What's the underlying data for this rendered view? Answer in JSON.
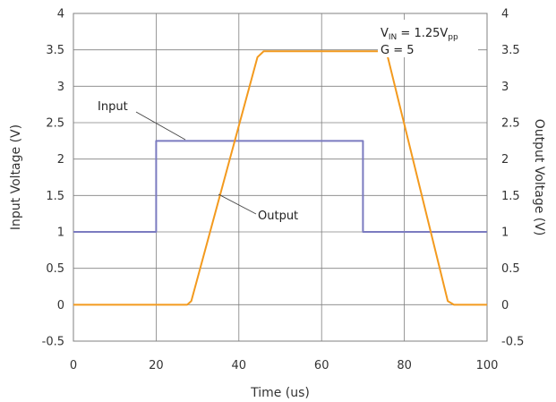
{
  "chart_data": {
    "type": "line",
    "xlabel": "Time (us)",
    "ylabel": "Input Voltage (V)",
    "y2label": "Output Voltage (V)",
    "xlim": [
      0,
      100
    ],
    "ylim": [
      -0.5,
      4
    ],
    "xticks": [
      "0",
      "20",
      "40",
      "60",
      "80",
      "100"
    ],
    "yticks": [
      "-0.5",
      "0",
      "0.5",
      "1",
      "1.5",
      "2",
      "2.5",
      "3",
      "3.5",
      "4"
    ],
    "y2ticks": [
      "-0.5",
      "0",
      "0.5",
      "1",
      "1.5",
      "2",
      "2.5",
      "3",
      "3.5",
      "4"
    ],
    "grid": true,
    "annotation": {
      "vin_main": "V",
      "vin_sub": "IN",
      "vin_eq": " = 1.25V",
      "vin_unit_sub": "pp",
      "gain": "G = 5"
    },
    "series": [
      {
        "name": "Input",
        "color": "#7b7bc0",
        "x": [
          0,
          20,
          20,
          70,
          70,
          100
        ],
        "y": [
          1,
          1,
          2.25,
          2.25,
          1,
          1
        ]
      },
      {
        "name": "Output",
        "color": "#f39a1e",
        "x": [
          0,
          27.5,
          28.5,
          44.5,
          46,
          74.5,
          76,
          90.5,
          92,
          100
        ],
        "y": [
          0,
          0,
          0.05,
          3.4,
          3.48,
          3.48,
          3.4,
          0.05,
          0,
          0
        ]
      }
    ]
  }
}
